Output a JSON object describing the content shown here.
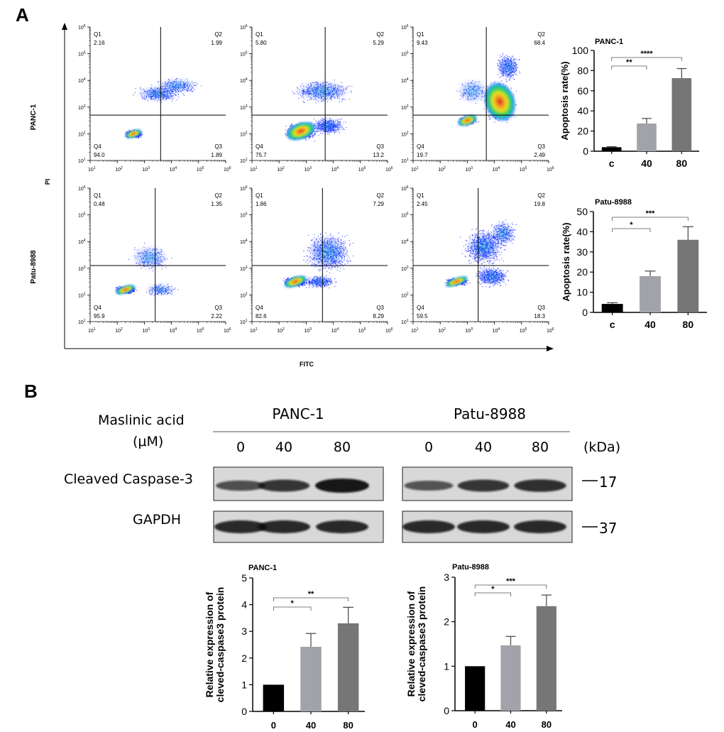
{
  "panels": {
    "a": {
      "label": "A"
    },
    "b": {
      "label": "B"
    }
  },
  "flow": {
    "y_axis_label": "PI",
    "x_axis_label": "FITC",
    "row_labels": [
      "PANC-1",
      "Patu-8988"
    ],
    "tick_labels": [
      "1",
      "2",
      "3",
      "4",
      "5",
      "6"
    ],
    "quadrant_names": [
      "Q1",
      "Q2",
      "Q3",
      "Q4"
    ],
    "plots": [
      {
        "row": 0,
        "col": 0,
        "q1": "2.16",
        "q2": "1.99",
        "q3": "1.89",
        "q4": "94.0",
        "gate_x": 3.6,
        "gate_y": 2.7
      },
      {
        "row": 0,
        "col": 1,
        "q1": "5.80",
        "q2": "5.29",
        "q3": "13.2",
        "q4": "75.7",
        "gate_x": 3.7,
        "gate_y": 2.7
      },
      {
        "row": 0,
        "col": 2,
        "q1": "9.43",
        "q2": "68.4",
        "q3": "2.49",
        "q4": "19.7",
        "gate_x": 3.7,
        "gate_y": 2.7
      },
      {
        "row": 1,
        "col": 0,
        "q1": "0.48",
        "q2": "1.35",
        "q3": "2.22",
        "q4": "95.9",
        "gate_x": 3.4,
        "gate_y": 3.1
      },
      {
        "row": 1,
        "col": 1,
        "q1": "1.86",
        "q2": "7.29",
        "q3": "8.29",
        "q4": "82.6",
        "gate_x": 3.6,
        "gate_y": 3.1
      },
      {
        "row": 1,
        "col": 2,
        "q1": "2.45",
        "q2": "19.8",
        "q3": "18.3",
        "q4": "59.5",
        "gate_x": 3.4,
        "gate_y": 3.1
      }
    ]
  },
  "western": {
    "treatment_label_line1": "Maslinic acid",
    "treatment_label_line2": "(μM)",
    "cell_lines": [
      "PANC-1",
      "Patu-8988"
    ],
    "doses": [
      "0",
      "40",
      "80",
      "0",
      "40",
      "80"
    ],
    "kda_label": "(kDa)",
    "proteins": [
      {
        "name": "Cleaved Caspase-3",
        "kda": "17",
        "intensity": [
          0.55,
          0.75,
          1.0,
          0.5,
          0.75,
          0.8
        ]
      },
      {
        "name": "GAPDH",
        "kda": "37",
        "intensity": [
          0.85,
          0.85,
          0.85,
          0.85,
          0.85,
          0.85
        ]
      }
    ]
  },
  "chart_data": [
    {
      "type": "bar",
      "title": "PANC-1",
      "categories": [
        "c",
        "40",
        "80"
      ],
      "values": [
        4,
        27.5,
        72.5
      ],
      "errors": [
        0.5,
        5,
        9.5
      ],
      "colors": [
        "#000000",
        "#a2a2aa",
        "#767676"
      ],
      "ylabel": "Apoptosis rate(%)",
      "xlabel": "",
      "ylim": [
        0,
        100
      ],
      "yticks": [
        "0",
        "20",
        "40",
        "60",
        "80",
        "100"
      ],
      "significance": [
        {
          "from": 0,
          "to": 1,
          "label": "**"
        },
        {
          "from": 0,
          "to": 2,
          "label": "****"
        }
      ]
    },
    {
      "type": "bar",
      "title": "Patu-8988",
      "categories": [
        "c",
        "40",
        "80"
      ],
      "values": [
        4.2,
        18,
        36
      ],
      "errors": [
        0.6,
        2.5,
        6.5
      ],
      "colors": [
        "#000000",
        "#a2a2aa",
        "#767676"
      ],
      "ylabel": "Apoptosis rate(%)",
      "xlabel": "",
      "ylim": [
        0,
        50
      ],
      "yticks": [
        "0",
        "10",
        "20",
        "30",
        "40",
        "50"
      ],
      "significance": [
        {
          "from": 0,
          "to": 1,
          "label": "*"
        },
        {
          "from": 0,
          "to": 2,
          "label": "***"
        }
      ]
    },
    {
      "type": "bar",
      "title": "PANC-1",
      "categories": [
        "0",
        "40",
        "80"
      ],
      "values": [
        1,
        2.42,
        3.3
      ],
      "errors": [
        0,
        0.5,
        0.6
      ],
      "colors": [
        "#000000",
        "#a2a2aa",
        "#767676"
      ],
      "ylabel_line1": "Relative expression of",
      "ylabel_line2": "cleved-caspase3 protein",
      "xlabel": "",
      "ylim": [
        0,
        5
      ],
      "yticks": [
        "0",
        "1",
        "2",
        "3",
        "4",
        "5"
      ],
      "significance": [
        {
          "from": 0,
          "to": 1,
          "label": "*"
        },
        {
          "from": 0,
          "to": 2,
          "label": "**"
        }
      ]
    },
    {
      "type": "bar",
      "title": "Patu-8988",
      "categories": [
        "0",
        "40",
        "80"
      ],
      "values": [
        1,
        1.47,
        2.35
      ],
      "errors": [
        0,
        0.2,
        0.25
      ],
      "colors": [
        "#000000",
        "#a2a2aa",
        "#767676"
      ],
      "ylabel_line1": "Relative expression of",
      "ylabel_line2": "cleved-caspase3 protein",
      "xlabel": "",
      "ylim": [
        0,
        3
      ],
      "yticks": [
        "0",
        "1",
        "2",
        "3"
      ],
      "significance": [
        {
          "from": 0,
          "to": 1,
          "label": "*"
        },
        {
          "from": 0,
          "to": 2,
          "label": "***"
        }
      ]
    }
  ]
}
